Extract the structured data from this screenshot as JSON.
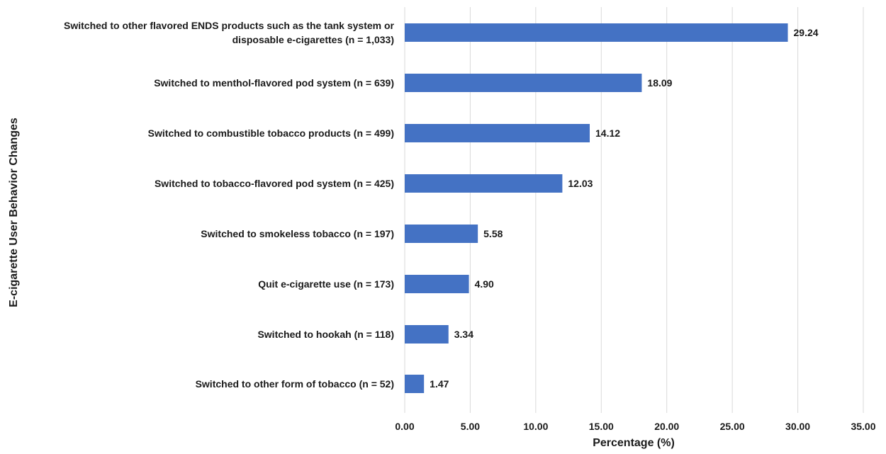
{
  "chart_data": {
    "type": "bar",
    "orientation": "horizontal",
    "title": "",
    "xlabel": "Percentage (%)",
    "ylabel": "E-cigarette User Behavior Changes",
    "xlim": [
      0,
      35
    ],
    "x_ticks": [
      "0.00",
      "5.00",
      "10.00",
      "15.00",
      "20.00",
      "25.00",
      "30.00",
      "35.00"
    ],
    "grid": true,
    "legend": "none",
    "bar_color": "#4472c4",
    "categories": [
      [
        "Switched to other flavored ENDS products such as the tank system or",
        "disposable e-cigarettes (n = 1,033)"
      ],
      [
        "Switched to menthol-flavored pod system (n = 639)"
      ],
      [
        "Switched to combustible tobacco products (n = 499)"
      ],
      [
        "Switched to tobacco-flavored pod system (n = 425)"
      ],
      [
        "Switched to smokeless tobacco (n = 197)"
      ],
      [
        "Quit e-cigarette use (n = 173)"
      ],
      [
        "Switched to hookah (n = 118)"
      ],
      [
        "Switched to other form of tobacco (n = 52)"
      ]
    ],
    "values": [
      29.24,
      18.09,
      14.12,
      12.03,
      5.58,
      4.9,
      3.34,
      1.47
    ],
    "value_labels": [
      "29.24",
      "18.09",
      "14.12",
      "12.03",
      "5.58",
      "4.90",
      "3.34",
      "1.47"
    ]
  }
}
